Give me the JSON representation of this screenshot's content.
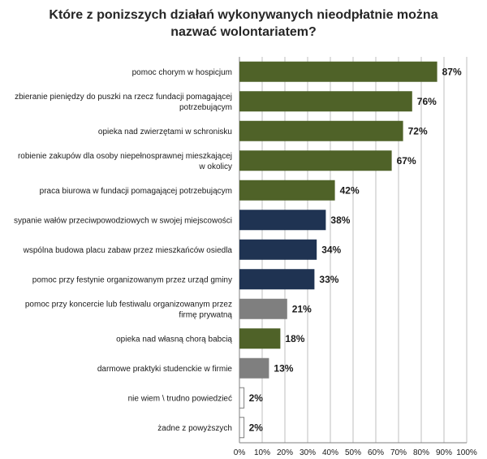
{
  "chart_data": {
    "type": "bar",
    "orientation": "horizontal",
    "title": "Które z ponizszych działań wykonywanych nieodpłatnie można nazwać wolontariatem?",
    "xlim": [
      0,
      100
    ],
    "x_ticks": [
      "0%",
      "10%",
      "20%",
      "30%",
      "40%",
      "50%",
      "60%",
      "70%",
      "80%",
      "90%",
      "100%"
    ],
    "grid": "vertical",
    "colors": {
      "green": "#4f6228",
      "navy": "#1f3352",
      "gray": "#7f7f7f",
      "white": "#ffffff"
    },
    "categories": [
      [
        "pomoc chorym w hospicjum"
      ],
      [
        "zbieranie pieniędzy do puszki na rzecz fundacji pomagającej",
        "potrzebującym"
      ],
      [
        "opieka nad zwierzętami w schronisku"
      ],
      [
        "robienie zakupów dla osoby niepełnosprawnej mieszkającej",
        "w okolicy"
      ],
      [
        "praca biurowa w fundacji pomagającej potrzebującym"
      ],
      [
        "sypanie wałów przeciwpowodziowych w swojej miejscowości"
      ],
      [
        "wspólna budowa placu zabaw przez mieszkańców osiedla"
      ],
      [
        "pomoc przy festynie organizowanym przez urząd gminy"
      ],
      [
        "pomoc przy koncercie lub festiwalu organizowanym przez",
        "firmę prywatną"
      ],
      [
        "opieka nad własną chorą babcią"
      ],
      [
        "darmowe praktyki studenckie w firmie"
      ],
      [
        "nie wiem \\ trudno powiedzieć"
      ],
      [
        "żadne z powyższych"
      ]
    ],
    "values": [
      87,
      76,
      72,
      67,
      42,
      38,
      34,
      33,
      21,
      18,
      13,
      2,
      2
    ],
    "value_labels": [
      "87%",
      "76%",
      "72%",
      "67%",
      "42%",
      "38%",
      "34%",
      "33%",
      "21%",
      "18%",
      "13%",
      "2%",
      "2%"
    ],
    "bar_colors": [
      "green",
      "green",
      "green",
      "green",
      "green",
      "navy",
      "navy",
      "navy",
      "gray",
      "green",
      "gray",
      "white",
      "white"
    ]
  }
}
